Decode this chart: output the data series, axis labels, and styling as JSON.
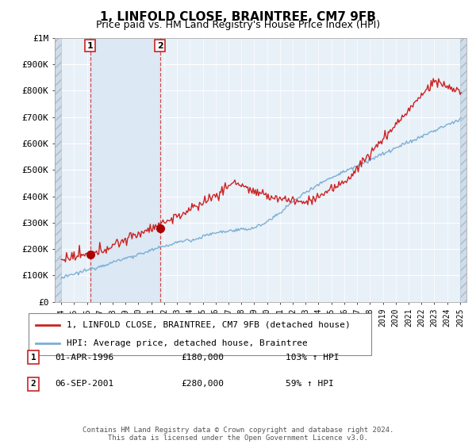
{
  "title": "1, LINFOLD CLOSE, BRAINTREE, CM7 9FB",
  "subtitle": "Price paid vs. HM Land Registry's House Price Index (HPI)",
  "title_fontsize": 11,
  "subtitle_fontsize": 9,
  "ylim": [
    0,
    1000000
  ],
  "yticks": [
    0,
    100000,
    200000,
    300000,
    400000,
    500000,
    600000,
    700000,
    800000,
    900000,
    1000000
  ],
  "ytick_labels": [
    "£0",
    "£100K",
    "£200K",
    "£300K",
    "£400K",
    "£500K",
    "£600K",
    "£700K",
    "£800K",
    "£900K",
    "£1M"
  ],
  "hpi_color": "#7bafd4",
  "price_color": "#cc2222",
  "marker_color": "#aa0000",
  "annotation_box_color": "#cc2222",
  "background_plot": "#e8f0f8",
  "background_hatch_color": "#d0dce8",
  "highlight_color": "#dce8f4",
  "legend_label_price": "1, LINFOLD CLOSE, BRAINTREE, CM7 9FB (detached house)",
  "legend_label_hpi": "HPI: Average price, detached house, Braintree",
  "sale1_date": "01-APR-1996",
  "sale1_price": "£180,000",
  "sale1_hpi": "103% ↑ HPI",
  "sale1_year": 1996.25,
  "sale1_value": 180000,
  "sale2_date": "06-SEP-2001",
  "sale2_price": "£280,000",
  "sale2_hpi": "59% ↑ HPI",
  "sale2_year": 2001.67,
  "sale2_value": 280000,
  "footer": "Contains HM Land Registry data © Crown copyright and database right 2024.\nThis data is licensed under the Open Government Licence v3.0.",
  "xmin": 1993.5,
  "xmax": 2025.5
}
